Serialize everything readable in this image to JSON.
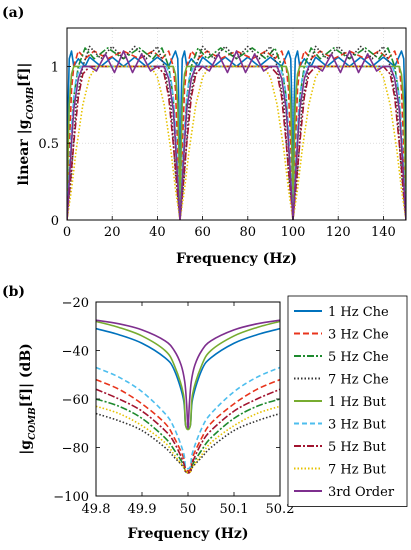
{
  "panels": {
    "a_label": "(a)",
    "b_label": "(b)"
  },
  "styles": [
    {
      "color": "#0072BD",
      "dash": ""
    },
    {
      "color": "#E8341C",
      "dash": "6,3"
    },
    {
      "color": "#1E8A2E",
      "dash": "7,2,2,2"
    },
    {
      "color": "#333333",
      "dash": "1.5,2"
    },
    {
      "color": "#77AC30",
      "dash": ""
    },
    {
      "color": "#4DBEEE",
      "dash": "5,3"
    },
    {
      "color": "#A2142F",
      "dash": "7,2,2,2"
    },
    {
      "color": "#E6C200",
      "dash": "1.5,2"
    },
    {
      "color": "#7E2F8E",
      "dash": ""
    }
  ],
  "chart_data": [
    {
      "type": "line",
      "panel": "(a)",
      "xlabel": "Frequency (Hz)",
      "ylabel": "linear |g_COMB[f]|",
      "xlim": [
        0,
        150
      ],
      "ylim": [
        0,
        1.25
      ],
      "xticks": [
        0,
        20,
        40,
        60,
        80,
        100,
        120,
        140
      ],
      "yticks": [
        0,
        0.5,
        1
      ],
      "ytick_labels": [
        "0",
        "0.5",
        "1"
      ],
      "grid": true,
      "notch_frequencies": [
        0,
        50,
        100,
        150
      ],
      "series": [
        {
          "name": "1 Hz Che",
          "x": [
            0,
            0.5,
            1,
            2,
            3,
            5,
            8,
            10,
            15,
            20,
            25,
            30,
            35,
            40,
            45,
            48,
            49,
            49.5,
            50
          ],
          "y": [
            0,
            0.75,
            1.05,
            1.1,
            1.0,
            1.05,
            1.0,
            1.06,
            1.0,
            1.06,
            1.0,
            1.06,
            1.0,
            1.06,
            1.0,
            1.1,
            1.05,
            0.75,
            0
          ]
        },
        {
          "name": "3 Hz Che",
          "x": [
            0,
            1,
            2,
            3,
            5,
            8,
            12,
            18,
            25,
            32,
            38,
            42,
            45,
            47,
            48,
            49,
            50
          ],
          "y": [
            0,
            0.45,
            0.85,
            1.0,
            1.1,
            1.05,
            1.1,
            1.05,
            1.1,
            1.05,
            1.1,
            1.05,
            1.1,
            1.0,
            0.85,
            0.45,
            0
          ]
        },
        {
          "name": "5 Hz Che",
          "x": [
            0,
            1.5,
            3,
            5,
            8,
            12,
            18,
            25,
            32,
            38,
            42,
            45,
            47,
            48.5,
            50
          ],
          "y": [
            0,
            0.35,
            0.8,
            1.0,
            1.12,
            1.05,
            1.12,
            1.05,
            1.12,
            1.05,
            1.12,
            1.0,
            0.8,
            0.35,
            0
          ]
        },
        {
          "name": "7 Hz Che",
          "x": [
            0,
            2,
            4,
            7,
            10,
            15,
            20,
            25,
            30,
            35,
            40,
            43,
            46,
            48,
            50
          ],
          "y": [
            0,
            0.3,
            0.75,
            1.0,
            1.13,
            1.05,
            1.13,
            1.05,
            1.13,
            1.05,
            1.13,
            1.0,
            0.75,
            0.3,
            0
          ]
        },
        {
          "name": "1 Hz But",
          "x": [
            0,
            0.5,
            1,
            2,
            3,
            5,
            25,
            45,
            47,
            48,
            49,
            49.5,
            50
          ],
          "y": [
            0,
            0.45,
            0.75,
            0.95,
            1.0,
            1.0,
            1.0,
            1.0,
            1.0,
            0.95,
            0.75,
            0.45,
            0
          ]
        },
        {
          "name": "3 Hz But",
          "x": [
            0,
            1,
            2,
            3,
            4,
            6,
            25,
            44,
            46,
            47,
            48,
            49,
            50
          ],
          "y": [
            0,
            0.3,
            0.6,
            0.8,
            0.92,
            1.0,
            1.0,
            1.0,
            0.92,
            0.8,
            0.6,
            0.3,
            0
          ]
        },
        {
          "name": "5 Hz But",
          "x": [
            0,
            1.5,
            3,
            5,
            7,
            10,
            25,
            40,
            43,
            45,
            47,
            48.5,
            50
          ],
          "y": [
            0,
            0.25,
            0.5,
            0.8,
            0.95,
            1.0,
            1.0,
            1.0,
            0.95,
            0.8,
            0.5,
            0.25,
            0
          ]
        },
        {
          "name": "7 Hz But",
          "x": [
            0,
            2,
            4,
            7,
            10,
            13,
            25,
            37,
            40,
            43,
            46,
            48,
            50
          ],
          "y": [
            0,
            0.2,
            0.45,
            0.75,
            0.93,
            1.0,
            1.0,
            1.0,
            0.93,
            0.75,
            0.45,
            0.2,
            0
          ]
        },
        {
          "name": "3rd Order",
          "x": [
            0,
            1,
            2,
            3,
            5,
            7,
            10,
            13,
            17,
            21,
            25,
            29,
            33,
            37,
            40,
            43,
            45,
            47,
            48,
            49,
            50
          ],
          "y": [
            0,
            0.25,
            0.5,
            0.72,
            0.92,
            1.0,
            1.0,
            0.97,
            1.08,
            0.96,
            1.1,
            0.96,
            1.08,
            0.97,
            1.0,
            1.0,
            0.92,
            0.72,
            0.5,
            0.25,
            0
          ]
        }
      ]
    },
    {
      "type": "line",
      "panel": "(b)",
      "xlabel": "Frequency (Hz)",
      "ylabel": "|g_COMB[f]| (dB)",
      "xlim": [
        49.8,
        50.2
      ],
      "ylim": [
        -100,
        -20
      ],
      "xticks": [
        49.8,
        49.9,
        50,
        50.1,
        50.2
      ],
      "xtick_labels": [
        "49.8",
        "49.9",
        "50",
        "50.1",
        "50.2"
      ],
      "yticks": [
        -100,
        -80,
        -60,
        -40,
        -20
      ],
      "ytick_labels": [
        "−100",
        "−80",
        "−60",
        "−40",
        "−20"
      ],
      "grid": false,
      "legend_position": "right, outside",
      "series": [
        {
          "name": "1 Hz Che",
          "x": [
            49.8,
            49.85,
            49.9,
            49.95,
            49.97,
            49.99,
            49.995,
            50.005,
            50.01,
            50.03,
            50.05,
            50.1,
            50.15,
            50.2
          ],
          "y": [
            -31,
            -33.5,
            -37,
            -43,
            -48,
            -60,
            -71,
            -71,
            -60,
            -48,
            -43,
            -37,
            -33.5,
            -31
          ]
        },
        {
          "name": "3 Hz Che",
          "x": [
            49.8,
            49.85,
            49.9,
            49.95,
            49.97,
            49.99,
            49.995,
            50.005,
            50.01,
            50.03,
            50.05,
            50.1,
            50.15,
            50.2
          ],
          "y": [
            -52,
            -56,
            -62,
            -70,
            -76,
            -84,
            -89,
            -89,
            -84,
            -76,
            -70,
            -62,
            -56,
            -52
          ]
        },
        {
          "name": "5 Hz Che",
          "x": [
            49.8,
            49.85,
            49.9,
            49.95,
            49.97,
            49.99,
            49.995,
            50.005,
            50.01,
            50.03,
            50.05,
            50.1,
            50.15,
            50.2
          ],
          "y": [
            -60,
            -63,
            -68,
            -76,
            -81,
            -87,
            -90,
            -90,
            -87,
            -81,
            -76,
            -68,
            -63,
            -60
          ]
        },
        {
          "name": "7 Hz Che",
          "x": [
            49.8,
            49.85,
            49.9,
            49.95,
            49.97,
            49.99,
            49.995,
            50.005,
            50.01,
            50.03,
            50.05,
            50.1,
            50.15,
            50.2
          ],
          "y": [
            -66,
            -69,
            -73,
            -80,
            -84,
            -88,
            -90,
            -90,
            -88,
            -84,
            -80,
            -73,
            -69,
            -66
          ]
        },
        {
          "name": "1 Hz But",
          "x": [
            49.8,
            49.85,
            49.9,
            49.95,
            49.97,
            49.99,
            49.995,
            50.005,
            50.01,
            50.03,
            50.05,
            50.1,
            50.15,
            50.2
          ],
          "y": [
            -28,
            -30.5,
            -34,
            -40,
            -46,
            -58,
            -71,
            -71,
            -58,
            -46,
            -40,
            -34,
            -30.5,
            -28
          ]
        },
        {
          "name": "3 Hz But",
          "x": [
            49.8,
            49.85,
            49.9,
            49.95,
            49.97,
            49.99,
            49.995,
            50.005,
            50.01,
            50.03,
            50.05,
            50.1,
            50.15,
            50.2
          ],
          "y": [
            -47,
            -51,
            -57,
            -66,
            -72,
            -82,
            -88,
            -88,
            -82,
            -72,
            -66,
            -57,
            -51,
            -47
          ]
        },
        {
          "name": "5 Hz But",
          "x": [
            49.8,
            49.85,
            49.9,
            49.95,
            49.97,
            49.99,
            49.995,
            50.005,
            50.01,
            50.03,
            50.05,
            50.1,
            50.15,
            50.2
          ],
          "y": [
            -56,
            -60,
            -65,
            -73,
            -78,
            -86,
            -90,
            -90,
            -86,
            -78,
            -73,
            -65,
            -60,
            -56
          ]
        },
        {
          "name": "7 Hz But",
          "x": [
            49.8,
            49.85,
            49.9,
            49.95,
            49.97,
            49.99,
            49.995,
            50.005,
            50.01,
            50.03,
            50.05,
            50.1,
            50.15,
            50.2
          ],
          "y": [
            -63,
            -66,
            -71,
            -78,
            -83,
            -88,
            -90,
            -90,
            -88,
            -83,
            -78,
            -71,
            -66,
            -63
          ]
        },
        {
          "name": "3rd Order",
          "x": [
            49.8,
            49.85,
            49.9,
            49.95,
            49.97,
            49.985,
            49.993,
            49.997,
            50,
            50.003,
            50.007,
            50.015,
            50.03,
            50.05,
            50.1,
            50.15,
            50.2
          ],
          "y": [
            -27.5,
            -29,
            -31.5,
            -36,
            -40,
            -46,
            -53,
            -62,
            -72,
            -62,
            -53,
            -46,
            -40,
            -36,
            -31.5,
            -29,
            -27.5
          ]
        }
      ]
    }
  ]
}
